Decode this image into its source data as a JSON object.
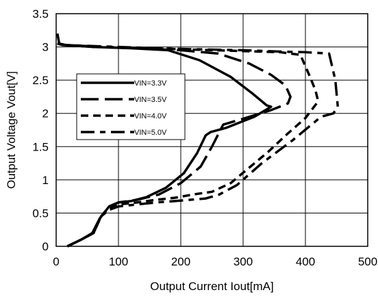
{
  "chart_data": {
    "type": "line",
    "title": "",
    "xlabel": "Output Current  Iout[mA]",
    "ylabel": "Output Voltage Vout[V]",
    "xlim": [
      0,
      500
    ],
    "ylim": [
      0,
      3.5
    ],
    "xticks": [
      0,
      100,
      200,
      300,
      400,
      500
    ],
    "xtick_labels": [
      "0",
      "100",
      "200",
      "300",
      "400",
      "500"
    ],
    "yticks": [
      0,
      0.5,
      1,
      1.5,
      2,
      2.5,
      3,
      3.5
    ],
    "ytick_labels": [
      "0",
      "0.5",
      "1",
      "1.5",
      "2",
      "2.5",
      "3",
      "3.5"
    ],
    "grid": true,
    "legend_position": "left",
    "series": [
      {
        "name": "VIN=3.3V",
        "style": "solid",
        "x": [
          2,
          5,
          15,
          60,
          120,
          180,
          230,
          280,
          315,
          338,
          345,
          318,
          272,
          248,
          240,
          226,
          205,
          176,
          145,
          120,
          100,
          85,
          70,
          58,
          40,
          18
        ],
        "y": [
          3.2,
          3.05,
          3.03,
          3.0,
          2.98,
          2.95,
          2.8,
          2.55,
          2.3,
          2.12,
          2.1,
          1.95,
          1.78,
          1.72,
          1.67,
          1.4,
          1.1,
          0.88,
          0.74,
          0.68,
          0.66,
          0.6,
          0.42,
          0.2,
          0.1,
          0.0
        ]
      },
      {
        "name": "VIN=3.5V",
        "style": "long-dash",
        "x": [
          2,
          10,
          60,
          130,
          200,
          260,
          310,
          345,
          368,
          376,
          372,
          345,
          300,
          268,
          250,
          232,
          200,
          165,
          130,
          100,
          85,
          72,
          60,
          40,
          18
        ],
        "y": [
          3.05,
          3.03,
          3.0,
          2.98,
          2.95,
          2.9,
          2.75,
          2.58,
          2.42,
          2.25,
          2.15,
          2.05,
          1.92,
          1.83,
          1.5,
          1.2,
          0.95,
          0.78,
          0.7,
          0.66,
          0.6,
          0.45,
          0.2,
          0.1,
          0.0
        ]
      },
      {
        "name": "VIN=4.0V",
        "style": "dash",
        "x": [
          2,
          10,
          80,
          150,
          220,
          290,
          360,
          392,
          405,
          416,
          420,
          418,
          400,
          372,
          340,
          312,
          280,
          250,
          220,
          190,
          160,
          130,
          100,
          85,
          72,
          60,
          40,
          18
        ],
        "y": [
          3.05,
          3.03,
          3.0,
          2.98,
          2.96,
          2.94,
          2.92,
          2.88,
          2.6,
          2.35,
          2.2,
          2.15,
          1.93,
          1.7,
          1.42,
          1.2,
          0.95,
          0.82,
          0.78,
          0.73,
          0.7,
          0.66,
          0.63,
          0.58,
          0.45,
          0.2,
          0.1,
          0.0
        ]
      },
      {
        "name": "VIN=5.0V",
        "style": "dash-dot",
        "x": [
          2,
          10,
          100,
          200,
          300,
          360,
          400,
          438,
          448,
          452,
          445,
          425,
          380,
          330,
          290,
          262,
          240,
          215,
          190,
          160,
          130,
          100,
          85,
          72,
          60,
          40,
          18
        ],
        "y": [
          3.05,
          3.03,
          3.0,
          2.97,
          2.95,
          2.93,
          2.92,
          2.9,
          2.5,
          2.1,
          2.0,
          1.95,
          1.6,
          1.25,
          0.92,
          0.78,
          0.72,
          0.7,
          0.68,
          0.66,
          0.63,
          0.6,
          0.55,
          0.45,
          0.2,
          0.1,
          0.0
        ]
      }
    ]
  }
}
